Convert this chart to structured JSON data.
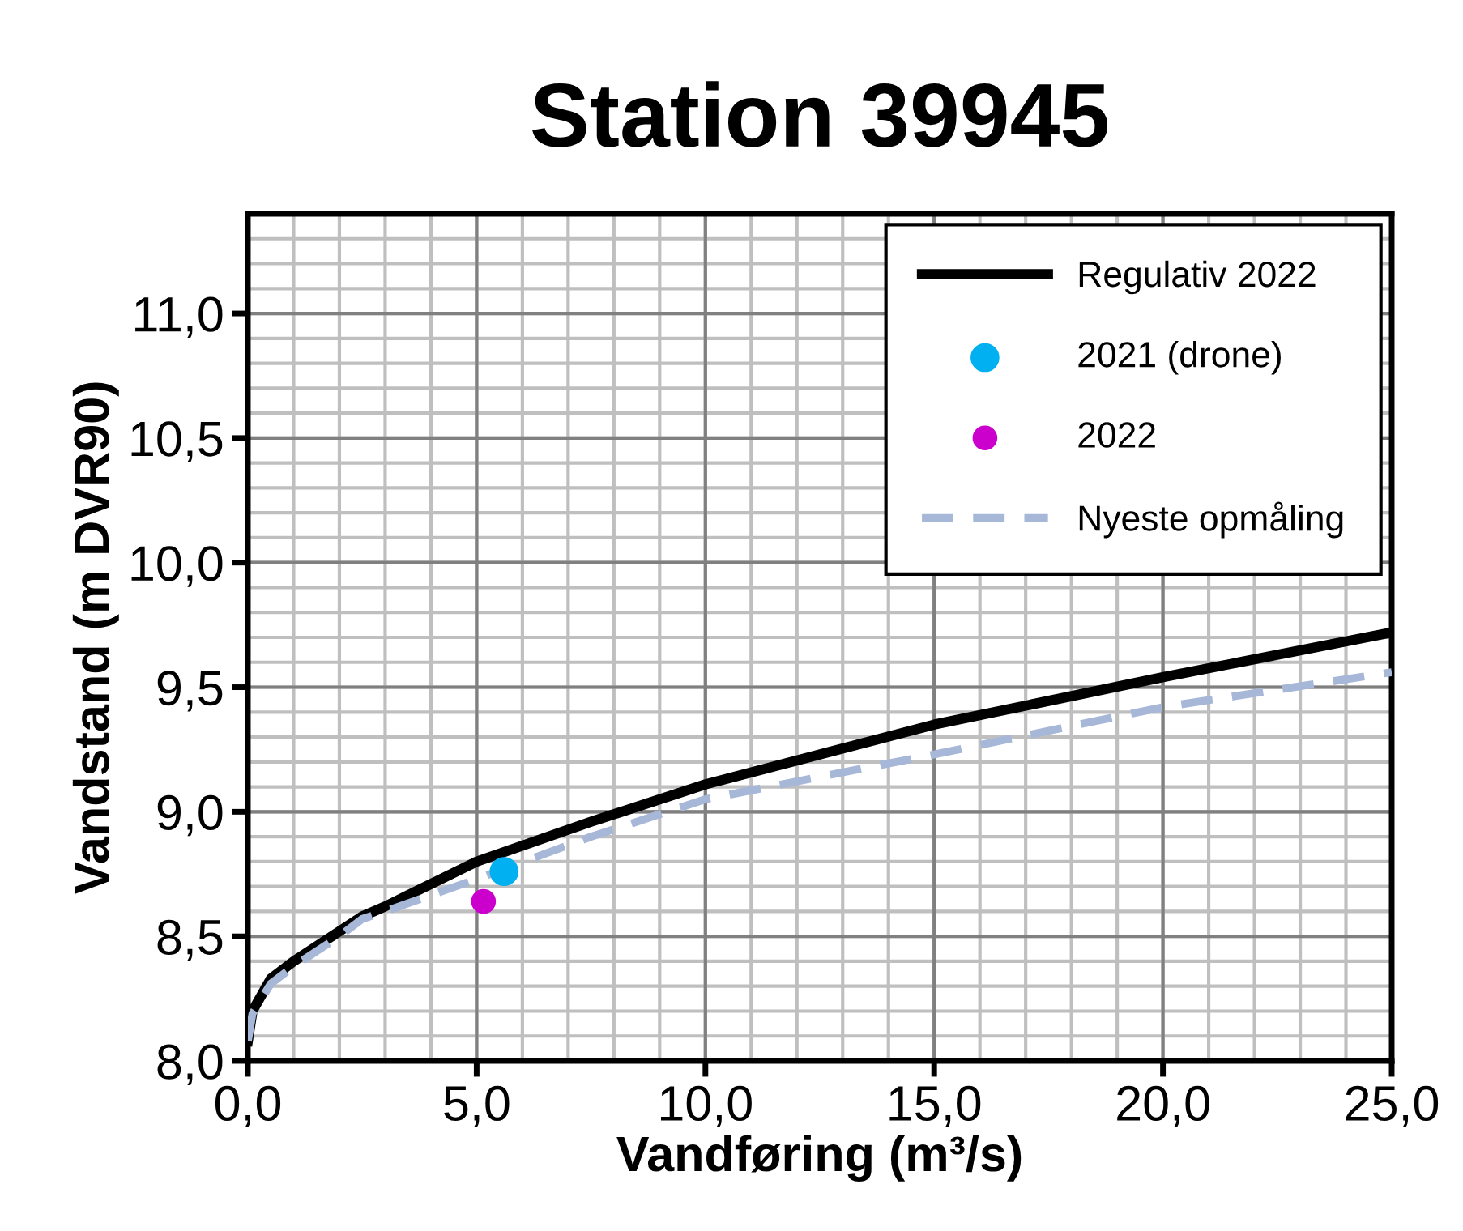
{
  "chart_data": {
    "type": "line",
    "title": "Station 39945",
    "xlabel": "Vandføring (m³/s)",
    "ylabel": "Vandstand (m DVR90)",
    "xlim": [
      0,
      25
    ],
    "ylim": [
      8.0,
      11.4
    ],
    "xticks": [
      {
        "value": 0,
        "label": "0,0"
      },
      {
        "value": 5,
        "label": "5,0"
      },
      {
        "value": 10,
        "label": "10,0"
      },
      {
        "value": 15,
        "label": "15,0"
      },
      {
        "value": 20,
        "label": "20,0"
      },
      {
        "value": 25,
        "label": "25,0"
      }
    ],
    "yticks": [
      {
        "value": 8.0,
        "label": "8,0"
      },
      {
        "value": 8.5,
        "label": "8,5"
      },
      {
        "value": 9.0,
        "label": "9,0"
      },
      {
        "value": 9.5,
        "label": "9,5"
      },
      {
        "value": 10.0,
        "label": "10,0"
      },
      {
        "value": 10.5,
        "label": "10,5"
      },
      {
        "value": 11.0,
        "label": "11,0"
      }
    ],
    "grid": true,
    "legend": "top right",
    "series": [
      {
        "name": "Regulativ 2022",
        "color": "#000000",
        "line_style": "solid",
        "x": [
          0,
          0.1,
          0.5,
          1,
          2,
          2.5,
          3,
          5,
          7.5,
          10,
          15,
          20,
          25
        ],
        "values": [
          8.08,
          8.2,
          8.33,
          8.4,
          8.52,
          8.58,
          8.62,
          8.8,
          8.96,
          9.11,
          9.35,
          9.54,
          9.72
        ]
      },
      {
        "name": "2021 (drone)",
        "type": "scatter",
        "color": "#00b0f0",
        "marker": "circle",
        "x": [
          5.6
        ],
        "values": [
          8.76
        ]
      },
      {
        "name": "2022",
        "type": "scatter",
        "color": "#cc00cc",
        "marker": "circle",
        "x": [
          5.15
        ],
        "values": [
          8.64
        ]
      },
      {
        "name": "Nyeste opmåling",
        "color": "#a6b7d8",
        "line_style": "dashed",
        "x": [
          0,
          0.1,
          0.5,
          1,
          2,
          2.5,
          3,
          5,
          7.5,
          10,
          15,
          20,
          25
        ],
        "values": [
          8.08,
          8.19,
          8.31,
          8.38,
          8.5,
          8.57,
          8.6,
          8.73,
          8.9,
          9.05,
          9.23,
          9.42,
          9.56
        ]
      }
    ]
  }
}
